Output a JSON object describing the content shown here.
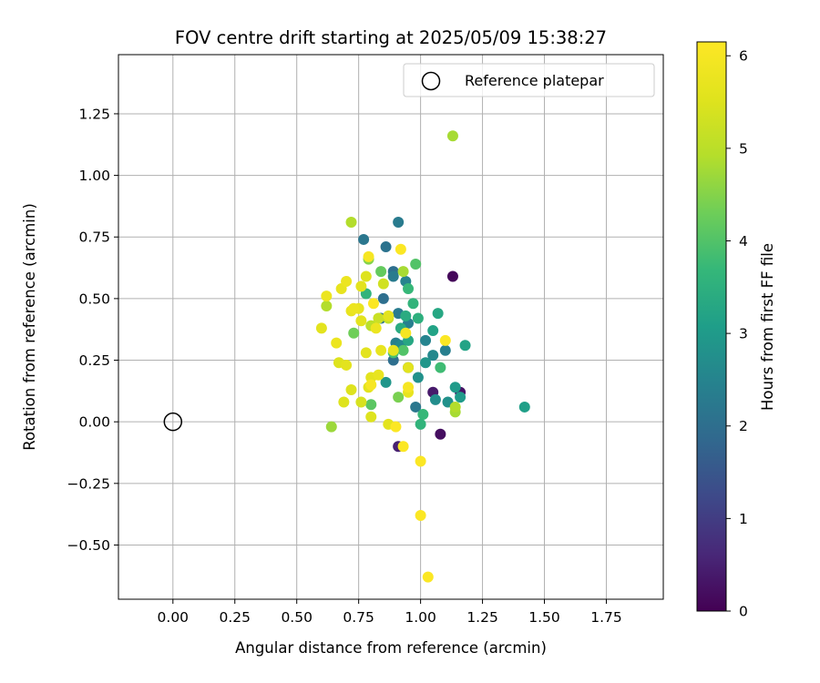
{
  "chart_data": {
    "type": "scatter",
    "title": "FOV centre drift starting at 2025/05/09 15:38:27",
    "xlabel": "Angular distance from reference (arcmin)",
    "ylabel": "Rotation from reference (arcmin)",
    "xlim": [
      -0.22,
      1.98
    ],
    "ylim": [
      -0.72,
      1.49
    ],
    "xticks": [
      0.0,
      0.25,
      0.5,
      0.75,
      1.0,
      1.25,
      1.5,
      1.75
    ],
    "xtick_labels": [
      "0.00",
      "0.25",
      "0.50",
      "0.75",
      "1.00",
      "1.25",
      "1.50",
      "1.75"
    ],
    "yticks": [
      -0.5,
      -0.25,
      0.0,
      0.25,
      0.5,
      0.75,
      1.0,
      1.25
    ],
    "ytick_labels": [
      "−0.50",
      "−0.25",
      "0.00",
      "0.25",
      "0.50",
      "0.75",
      "1.00",
      "1.25"
    ],
    "grid": true,
    "legend": {
      "position": "top-right",
      "entries": [
        "Reference platepar"
      ]
    },
    "reference_point": {
      "x": 0.0,
      "y": 0.0,
      "marker": "open-circle"
    },
    "colorbar": {
      "label": "Hours from first FF file",
      "colormap": "viridis",
      "min": 0,
      "max": 6.15,
      "ticks": [
        0,
        1,
        2,
        3,
        4,
        5,
        6
      ],
      "tick_labels": [
        "0",
        "1",
        "2",
        "3",
        "4",
        "5",
        "6"
      ]
    },
    "series": [
      {
        "points": [
          {
            "x": 1.13,
            "y": 0.59,
            "c": 0.1
          },
          {
            "x": 1.08,
            "y": -0.05,
            "c": 0.2
          },
          {
            "x": 1.16,
            "y": 0.12,
            "c": 0.3
          },
          {
            "x": 1.05,
            "y": 0.12,
            "c": 0.4
          },
          {
            "x": 0.91,
            "y": -0.1,
            "c": 0.5
          },
          {
            "x": 0.91,
            "y": 0.81,
            "c": 2.3
          },
          {
            "x": 0.77,
            "y": 0.74,
            "c": 2.2
          },
          {
            "x": 0.86,
            "y": 0.71,
            "c": 2.1
          },
          {
            "x": 0.89,
            "y": 0.61,
            "c": 2.0
          },
          {
            "x": 0.89,
            "y": 0.59,
            "c": 2.3
          },
          {
            "x": 0.94,
            "y": 0.57,
            "c": 2.5
          },
          {
            "x": 0.85,
            "y": 0.5,
            "c": 2.0
          },
          {
            "x": 0.91,
            "y": 0.44,
            "c": 2.3
          },
          {
            "x": 0.84,
            "y": 0.42,
            "c": 2.1
          },
          {
            "x": 0.9,
            "y": 0.32,
            "c": 2.4
          },
          {
            "x": 0.89,
            "y": 0.25,
            "c": 2.0
          },
          {
            "x": 0.95,
            "y": 0.22,
            "c": 2.6
          },
          {
            "x": 0.99,
            "y": 0.18,
            "c": 2.8
          },
          {
            "x": 1.02,
            "y": 0.24,
            "c": 2.9
          },
          {
            "x": 1.05,
            "y": 0.27,
            "c": 2.6
          },
          {
            "x": 1.1,
            "y": 0.29,
            "c": 2.4
          },
          {
            "x": 1.02,
            "y": 0.33,
            "c": 2.5
          },
          {
            "x": 1.06,
            "y": 0.09,
            "c": 2.7
          },
          {
            "x": 1.11,
            "y": 0.08,
            "c": 2.8
          },
          {
            "x": 1.16,
            "y": 0.1,
            "c": 3.0
          },
          {
            "x": 0.98,
            "y": 0.06,
            "c": 2.2
          },
          {
            "x": 0.95,
            "y": 0.4,
            "c": 2.4
          },
          {
            "x": 0.92,
            "y": 0.31,
            "c": 2.6
          },
          {
            "x": 0.86,
            "y": 0.16,
            "c": 2.9
          },
          {
            "x": 1.07,
            "y": 0.44,
            "c": 3.3
          },
          {
            "x": 1.05,
            "y": 0.37,
            "c": 3.2
          },
          {
            "x": 0.99,
            "y": 0.42,
            "c": 3.5
          },
          {
            "x": 0.97,
            "y": 0.48,
            "c": 3.6
          },
          {
            "x": 0.95,
            "y": 0.54,
            "c": 3.7
          },
          {
            "x": 0.98,
            "y": 0.64,
            "c": 4.0
          },
          {
            "x": 1.18,
            "y": 0.31,
            "c": 3.2
          },
          {
            "x": 1.14,
            "y": 0.14,
            "c": 3.0
          },
          {
            "x": 1.42,
            "y": 0.06,
            "c": 3.1
          },
          {
            "x": 1.08,
            "y": 0.22,
            "c": 3.8
          },
          {
            "x": 1.01,
            "y": 0.03,
            "c": 3.7
          },
          {
            "x": 1.0,
            "y": -0.01,
            "c": 3.6
          },
          {
            "x": 0.92,
            "y": 0.38,
            "c": 3.4
          },
          {
            "x": 0.95,
            "y": 0.33,
            "c": 3.3
          },
          {
            "x": 0.94,
            "y": 0.43,
            "c": 3.4
          },
          {
            "x": 0.78,
            "y": 0.52,
            "c": 3.6
          },
          {
            "x": 0.89,
            "y": 0.28,
            "c": 3.9
          },
          {
            "x": 0.93,
            "y": 0.29,
            "c": 4.0
          },
          {
            "x": 0.8,
            "y": 0.07,
            "c": 4.1
          },
          {
            "x": 0.84,
            "y": 0.61,
            "c": 4.2
          },
          {
            "x": 0.73,
            "y": 0.36,
            "c": 4.3
          },
          {
            "x": 0.79,
            "y": 0.66,
            "c": 4.5
          },
          {
            "x": 0.91,
            "y": 0.1,
            "c": 4.4
          },
          {
            "x": 1.14,
            "y": 0.04,
            "c": 4.8
          },
          {
            "x": 1.14,
            "y": 0.06,
            "c": 4.9
          },
          {
            "x": 1.13,
            "y": 1.16,
            "c": 4.8
          },
          {
            "x": 0.72,
            "y": 0.81,
            "c": 4.9
          },
          {
            "x": 0.93,
            "y": 0.61,
            "c": 4.8
          },
          {
            "x": 0.64,
            "y": -0.02,
            "c": 4.7
          },
          {
            "x": 0.62,
            "y": 0.47,
            "c": 4.9
          },
          {
            "x": 0.8,
            "y": 0.39,
            "c": 5.0
          },
          {
            "x": 0.87,
            "y": 0.42,
            "c": 5.1
          },
          {
            "x": 0.83,
            "y": 0.42,
            "c": 5.2
          },
          {
            "x": 0.85,
            "y": 0.56,
            "c": 5.3
          },
          {
            "x": 0.76,
            "y": 0.08,
            "c": 5.4
          },
          {
            "x": 0.69,
            "y": 0.08,
            "c": 5.5
          },
          {
            "x": 0.8,
            "y": 0.02,
            "c": 5.5
          },
          {
            "x": 0.67,
            "y": 0.24,
            "c": 5.5
          },
          {
            "x": 0.7,
            "y": 0.23,
            "c": 5.6
          },
          {
            "x": 0.72,
            "y": 0.13,
            "c": 5.5
          },
          {
            "x": 0.76,
            "y": 0.41,
            "c": 5.6
          },
          {
            "x": 0.75,
            "y": 0.46,
            "c": 5.7
          },
          {
            "x": 0.76,
            "y": 0.55,
            "c": 5.6
          },
          {
            "x": 0.78,
            "y": 0.59,
            "c": 5.5
          },
          {
            "x": 0.68,
            "y": 0.54,
            "c": 5.7
          },
          {
            "x": 0.7,
            "y": 0.57,
            "c": 5.8
          },
          {
            "x": 0.72,
            "y": 0.45,
            "c": 5.7
          },
          {
            "x": 0.73,
            "y": 0.46,
            "c": 5.8
          },
          {
            "x": 0.62,
            "y": 0.51,
            "c": 5.8
          },
          {
            "x": 0.6,
            "y": 0.38,
            "c": 5.6
          },
          {
            "x": 0.78,
            "y": 0.28,
            "c": 5.6
          },
          {
            "x": 0.84,
            "y": 0.29,
            "c": 5.7
          },
          {
            "x": 0.8,
            "y": 0.18,
            "c": 5.6
          },
          {
            "x": 0.83,
            "y": 0.19,
            "c": 5.7
          },
          {
            "x": 0.79,
            "y": 0.14,
            "c": 5.6
          },
          {
            "x": 0.87,
            "y": -0.01,
            "c": 5.6
          },
          {
            "x": 0.95,
            "y": 0.12,
            "c": 5.7
          },
          {
            "x": 0.95,
            "y": 0.22,
            "c": 5.6
          },
          {
            "x": 0.89,
            "y": 0.29,
            "c": 5.7
          },
          {
            "x": 0.82,
            "y": 0.38,
            "c": 5.8
          },
          {
            "x": 0.87,
            "y": 0.43,
            "c": 5.6
          },
          {
            "x": 0.66,
            "y": 0.32,
            "c": 5.8
          },
          {
            "x": 0.79,
            "y": 0.67,
            "c": 6.0
          },
          {
            "x": 0.92,
            "y": 0.7,
            "c": 6.1
          },
          {
            "x": 0.81,
            "y": 0.48,
            "c": 6.1
          },
          {
            "x": 0.94,
            "y": 0.36,
            "c": 6.0
          },
          {
            "x": 1.1,
            "y": 0.33,
            "c": 6.1
          },
          {
            "x": 0.9,
            "y": -0.02,
            "c": 6.1
          },
          {
            "x": 0.93,
            "y": -0.1,
            "c": 6.1
          },
          {
            "x": 1.0,
            "y": -0.16,
            "c": 6.1
          },
          {
            "x": 1.0,
            "y": -0.38,
            "c": 6.1
          },
          {
            "x": 1.03,
            "y": -0.63,
            "c": 6.1
          },
          {
            "x": 0.95,
            "y": 0.14,
            "c": 6.0
          },
          {
            "x": 0.8,
            "y": 0.15,
            "c": 6.0
          }
        ]
      }
    ]
  }
}
